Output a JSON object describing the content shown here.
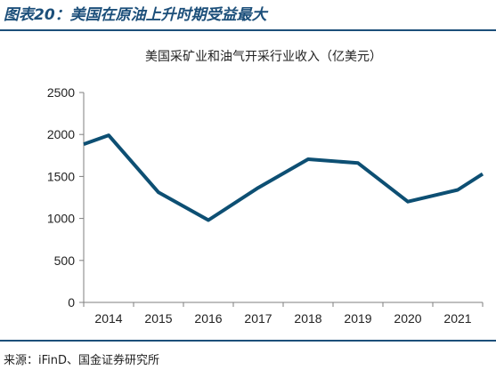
{
  "figure": {
    "title": "图表20：美国在原油上升时期受益最大",
    "source": "来源：iFinD、国金证券研究所"
  },
  "colors": {
    "line": "#0d4f73",
    "heading": "#1c4f7a",
    "axis": "#7f7f7f"
  },
  "chart_data": {
    "type": "line",
    "title": "美国采矿业和油气开采行业收入（亿美元）",
    "xlabel": "",
    "ylabel": "",
    "grid": false,
    "legend": "none",
    "categories": [
      "2014",
      "2015",
      "2016",
      "2017",
      "2018",
      "2019",
      "2020",
      "2021"
    ],
    "ylim": [
      0,
      2500
    ],
    "yticks": [
      0,
      500,
      1000,
      1500,
      2000,
      2500
    ],
    "x": [
      2013.5,
      2014,
      2015,
      2016,
      2017,
      2018,
      2019,
      2020,
      2021,
      2021.5
    ],
    "series": [
      {
        "name": "",
        "values": [
          1885,
          1990,
          1310,
          980,
          1365,
          1705,
          1660,
          1200,
          1340,
          1530
        ]
      }
    ]
  }
}
